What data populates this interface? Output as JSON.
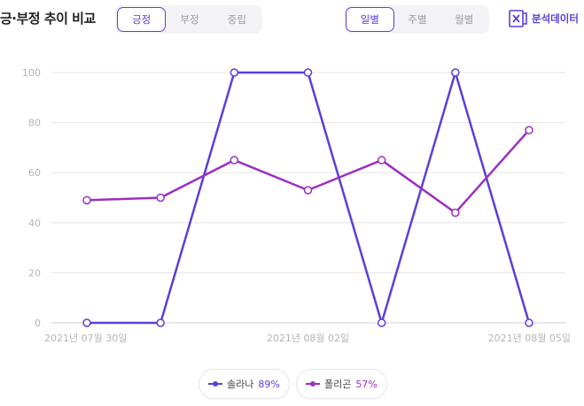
{
  "header": {
    "title": "긍·부정 추이 비교",
    "sentiment_tabs": [
      {
        "label": "긍정",
        "active": true
      },
      {
        "label": "부정",
        "active": false
      },
      {
        "label": "중립",
        "active": false
      }
    ],
    "period_tabs": [
      {
        "label": "일별",
        "active": true
      },
      {
        "label": "주별",
        "active": false
      },
      {
        "label": "월별",
        "active": false
      }
    ],
    "analysis_button": {
      "label": "분석데이터",
      "icon": "excel-icon"
    }
  },
  "colors": {
    "accent": "#5b3fd9",
    "solana": "#5b3fd9",
    "polygon": "#9b30c0",
    "grid": "#e5e5e5",
    "axis_text": "#b4b4b4"
  },
  "chart_data": {
    "type": "line",
    "x": [
      "2021-07-30",
      "2021-07-31",
      "2021-08-01",
      "2021-08-02",
      "2021-08-03",
      "2021-08-04",
      "2021-08-05"
    ],
    "x_tick_labels": [
      {
        "index": 0,
        "label": "2021년 07월 30일"
      },
      {
        "index": 3,
        "label": "2021년 08월 02일"
      },
      {
        "index": 6,
        "label": "2021년 08월 05일"
      }
    ],
    "ylim": [
      0,
      100
    ],
    "y_ticks": [
      0,
      20,
      40,
      60,
      80,
      100
    ],
    "grid": true,
    "legend_position": "bottom-center",
    "series": [
      {
        "name": "솔라나",
        "percent": "89%",
        "color": "#5b3fd9",
        "values": [
          0,
          0,
          100,
          100,
          0,
          100,
          0
        ]
      },
      {
        "name": "폴리곤",
        "percent": "57%",
        "color": "#9b30c0",
        "values": [
          49,
          50,
          65,
          53,
          65,
          44,
          77
        ]
      }
    ]
  }
}
